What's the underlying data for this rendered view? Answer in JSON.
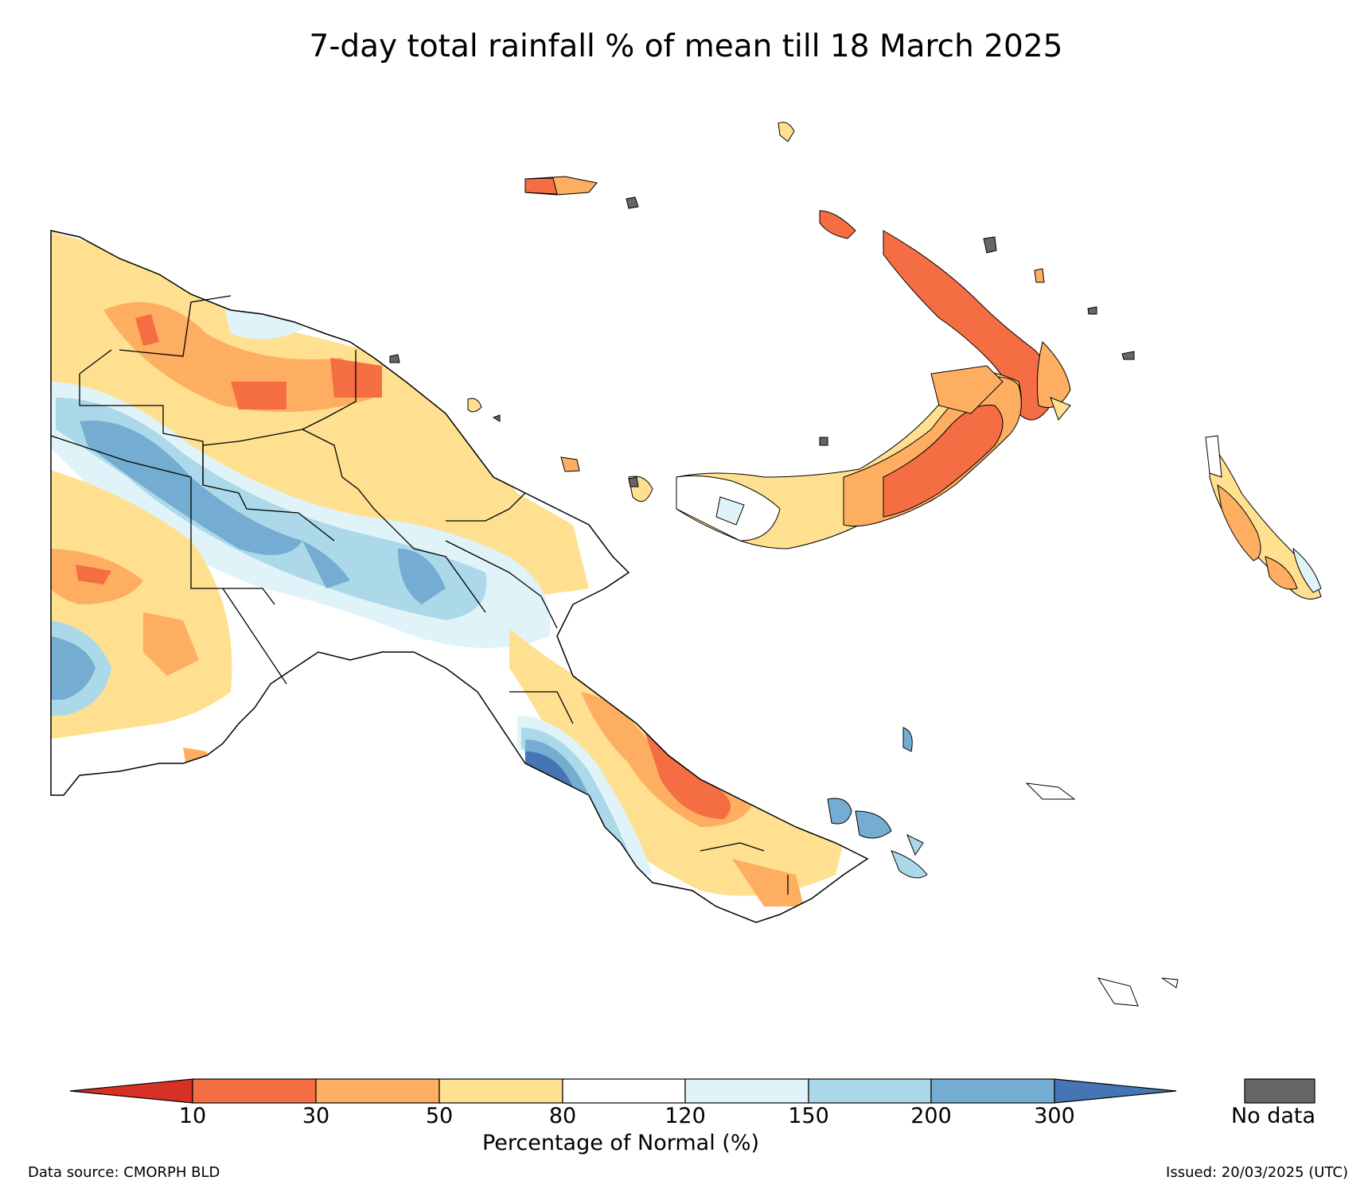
{
  "title": "7-day total rainfall % of mean till 18 March 2025",
  "colorbar": {
    "label": "Percentage of Normal (%)",
    "ticks": [
      "10",
      "30",
      "50",
      "80",
      "120",
      "150",
      "200",
      "300"
    ],
    "bins": [
      {
        "range": "<10",
        "color": "#d73027"
      },
      {
        "range": "10-30",
        "color": "#f46d43"
      },
      {
        "range": "30-50",
        "color": "#fdae61"
      },
      {
        "range": "50-80",
        "color": "#fee090"
      },
      {
        "range": "80-120",
        "color": "#ffffff"
      },
      {
        "range": "120-150",
        "color": "#e0f3f8"
      },
      {
        "range": "150-200",
        "color": "#abd9e9"
      },
      {
        "range": "200-300",
        "color": "#74add1"
      },
      {
        "range": ">300",
        "color": "#4575b4"
      }
    ]
  },
  "no_data": {
    "label": "No data",
    "color": "#666666"
  },
  "footer": {
    "source": "Data source: CMORPH BLD",
    "issued": "Issued: 20/03/2025 (UTC)"
  }
}
